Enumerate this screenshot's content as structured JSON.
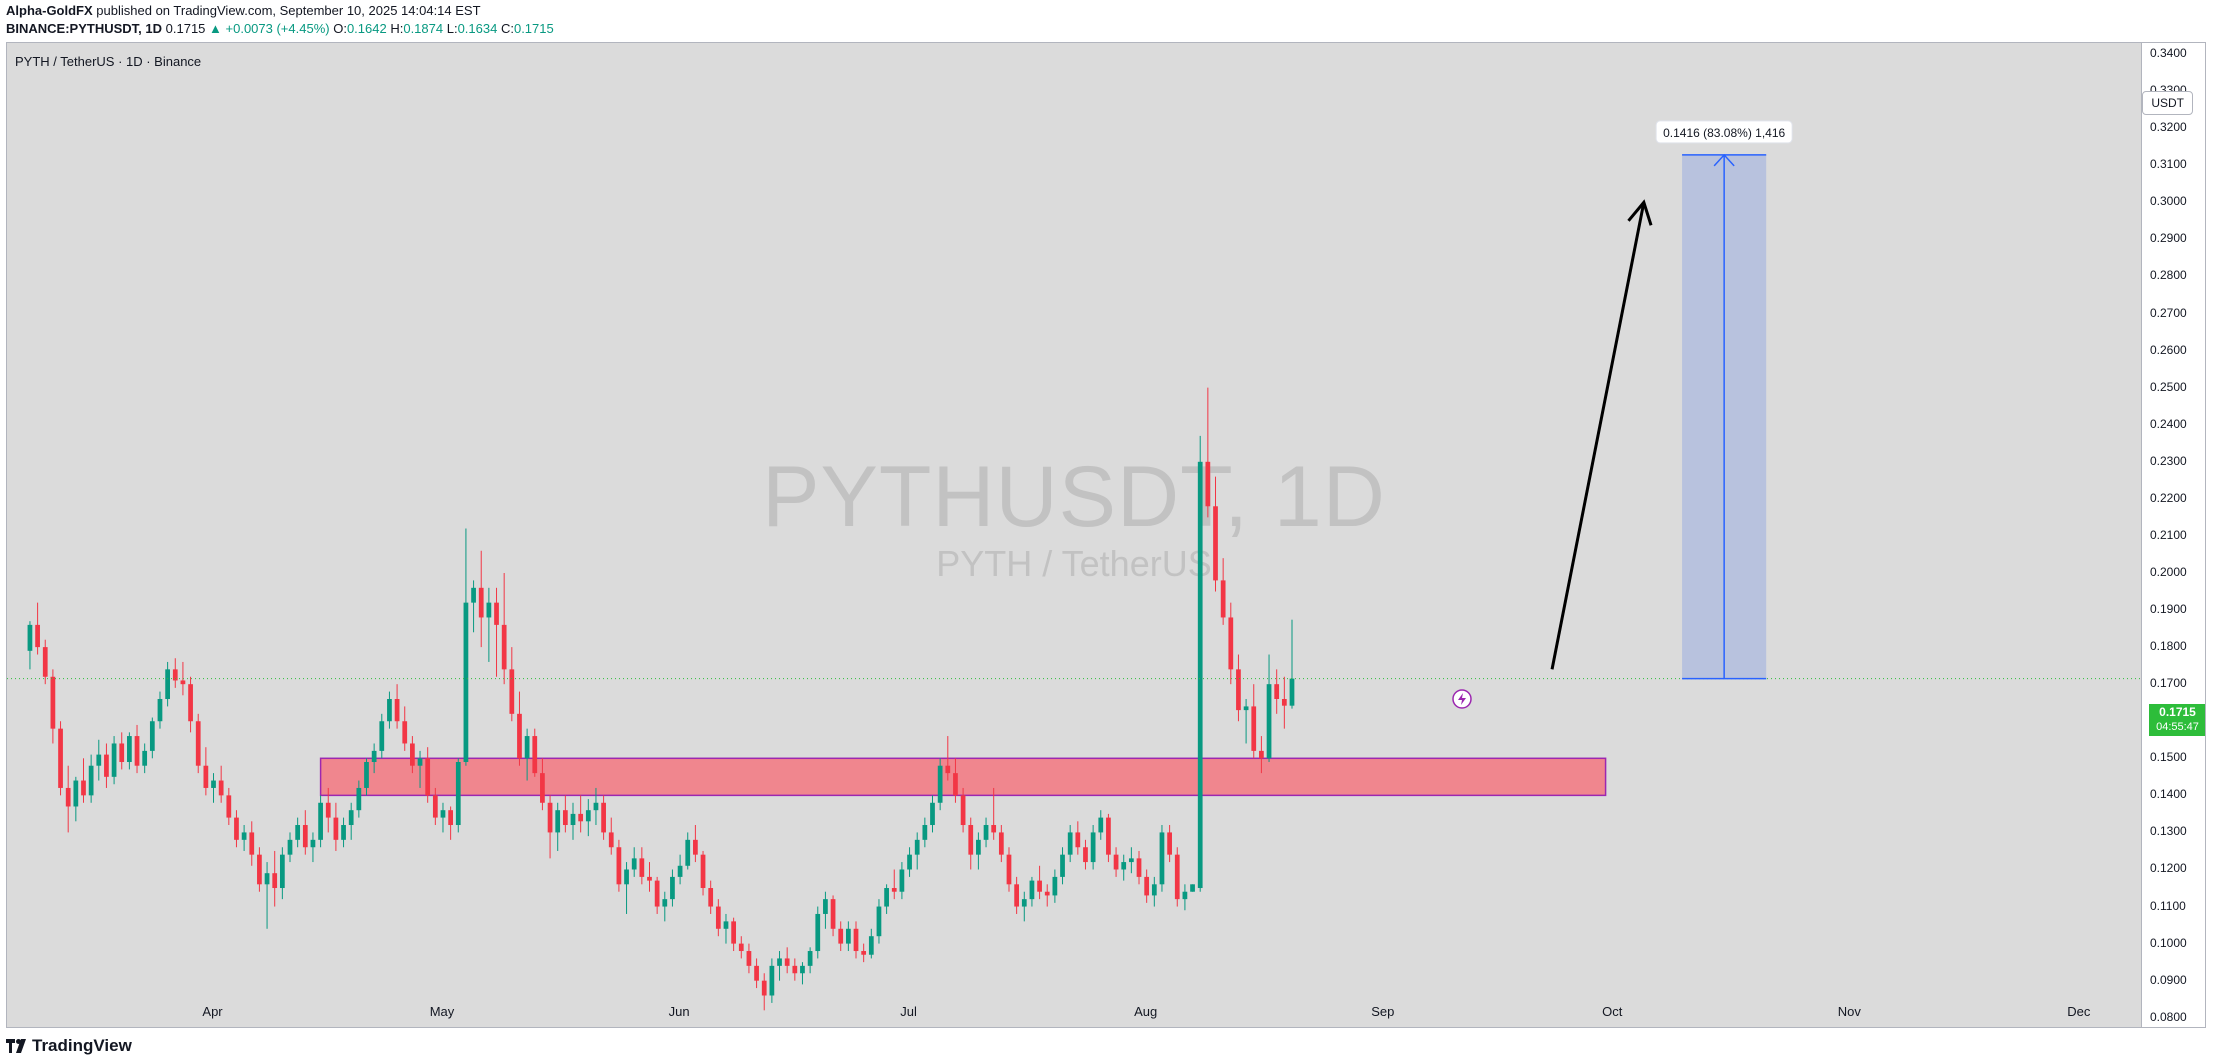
{
  "header": {
    "author": "Alpha-GoldFX",
    "published": "published on TradingView.com, September 10, 2025 14:04:14 EST",
    "symbol": "BINANCE:PYTHUSDT, 1D",
    "last": "0.1715",
    "change": "▲ +0.0073 (+4.45%)",
    "o_label": "O:",
    "o": "0.1642",
    "h_label": "H:",
    "h": "0.1874",
    "l_label": "L:",
    "l": "0.1634",
    "c_label": "C:",
    "c": "0.1715"
  },
  "pane_title": "PYTH / TetherUS · 1D · Binance",
  "watermark": {
    "symbol": "PYTHUSDT, 1D",
    "name": "PYTH / TetherUS"
  },
  "currency_button": "USDT",
  "price_tag": {
    "price": "0.1715",
    "countdown": "04:55:47"
  },
  "measure_label": "0.1416 (83.08%) 1,416",
  "footer": {
    "brand": "TradingView"
  },
  "colors": {
    "up": "#089981",
    "down": "#f23645",
    "zone": "#f0868e",
    "zone_border": "#9c27b0",
    "projection": "#2962ff"
  },
  "icons": [
    "flash-icon",
    "tradingview-logo-icon"
  ],
  "chart_data": {
    "type": "candlestick",
    "title": "PYTHUSDT, 1D",
    "y_ticks": [
      "0.0800",
      "0.0900",
      "0.1000",
      "0.1100",
      "0.1200",
      "0.1300",
      "0.1400",
      "0.1500",
      "0.1600",
      "0.1700",
      "0.1800",
      "0.1900",
      "0.2000",
      "0.2100",
      "0.2200",
      "0.2300",
      "0.2400",
      "0.2500",
      "0.2600",
      "0.2700",
      "0.2800",
      "0.2900",
      "0.3000",
      "0.3100",
      "0.3200",
      "0.3300",
      "0.3400"
    ],
    "ylim": [
      0.0775,
      0.343
    ],
    "x_ticks": [
      {
        "label": "Apr",
        "day": 24
      },
      {
        "label": "May",
        "day": 54
      },
      {
        "label": "Jun",
        "day": 85
      },
      {
        "label": "Jul",
        "day": 115
      },
      {
        "label": "Aug",
        "day": 146
      },
      {
        "label": "Sep",
        "day": 177
      },
      {
        "label": "Oct",
        "day": 207
      },
      {
        "label": "Nov",
        "day": 238
      },
      {
        "label": "Dec",
        "day": 268
      }
    ],
    "x_range_days": [
      -3,
      276
    ],
    "current_price": 0.1715,
    "support_zone": {
      "from": 0.14,
      "to": 0.15,
      "day_start": 38,
      "day_end": 206
    },
    "projection": {
      "from_price": 0.1715,
      "to_price": 0.3128,
      "day_start": 216,
      "day_end": 227
    },
    "arrow": {
      "from": {
        "day": 199,
        "price": 0.174
      },
      "to": {
        "day": 211,
        "price": 0.3
      }
    },
    "ohlc": [
      [
        0.179,
        0.187,
        0.174,
        0.186
      ],
      [
        0.186,
        0.192,
        0.178,
        0.18
      ],
      [
        0.18,
        0.182,
        0.17,
        0.172
      ],
      [
        0.172,
        0.174,
        0.154,
        0.158
      ],
      [
        0.158,
        0.16,
        0.14,
        0.142
      ],
      [
        0.142,
        0.148,
        0.13,
        0.137
      ],
      [
        0.137,
        0.145,
        0.133,
        0.144
      ],
      [
        0.144,
        0.15,
        0.138,
        0.14
      ],
      [
        0.14,
        0.151,
        0.138,
        0.148
      ],
      [
        0.148,
        0.155,
        0.144,
        0.151
      ],
      [
        0.151,
        0.154,
        0.142,
        0.145
      ],
      [
        0.145,
        0.156,
        0.143,
        0.154
      ],
      [
        0.154,
        0.157,
        0.147,
        0.149
      ],
      [
        0.149,
        0.157,
        0.147,
        0.156
      ],
      [
        0.156,
        0.159,
        0.146,
        0.148
      ],
      [
        0.148,
        0.154,
        0.146,
        0.152
      ],
      [
        0.152,
        0.161,
        0.15,
        0.16
      ],
      [
        0.16,
        0.168,
        0.158,
        0.166
      ],
      [
        0.166,
        0.176,
        0.164,
        0.174
      ],
      [
        0.174,
        0.177,
        0.169,
        0.171
      ],
      [
        0.171,
        0.176,
        0.167,
        0.17
      ],
      [
        0.17,
        0.172,
        0.157,
        0.16
      ],
      [
        0.16,
        0.162,
        0.146,
        0.148
      ],
      [
        0.148,
        0.153,
        0.14,
        0.142
      ],
      [
        0.142,
        0.146,
        0.138,
        0.144
      ],
      [
        0.144,
        0.148,
        0.138,
        0.14
      ],
      [
        0.14,
        0.142,
        0.132,
        0.134
      ],
      [
        0.134,
        0.136,
        0.126,
        0.128
      ],
      [
        0.128,
        0.132,
        0.125,
        0.13
      ],
      [
        0.13,
        0.133,
        0.121,
        0.124
      ],
      [
        0.124,
        0.126,
        0.114,
        0.116
      ],
      [
        0.116,
        0.122,
        0.104,
        0.119
      ],
      [
        0.119,
        0.125,
        0.11,
        0.115
      ],
      [
        0.115,
        0.126,
        0.112,
        0.124
      ],
      [
        0.124,
        0.13,
        0.122,
        0.128
      ],
      [
        0.128,
        0.134,
        0.126,
        0.132
      ],
      [
        0.132,
        0.136,
        0.124,
        0.126
      ],
      [
        0.126,
        0.13,
        0.122,
        0.128
      ],
      [
        0.128,
        0.14,
        0.126,
        0.138
      ],
      [
        0.138,
        0.142,
        0.13,
        0.134
      ],
      [
        0.134,
        0.138,
        0.125,
        0.128
      ],
      [
        0.128,
        0.134,
        0.126,
        0.132
      ],
      [
        0.132,
        0.138,
        0.128,
        0.136
      ],
      [
        0.136,
        0.144,
        0.134,
        0.142
      ],
      [
        0.142,
        0.15,
        0.14,
        0.149
      ],
      [
        0.149,
        0.154,
        0.146,
        0.152
      ],
      [
        0.152,
        0.162,
        0.15,
        0.16
      ],
      [
        0.16,
        0.168,
        0.158,
        0.166
      ],
      [
        0.166,
        0.17,
        0.158,
        0.16
      ],
      [
        0.16,
        0.164,
        0.152,
        0.154
      ],
      [
        0.154,
        0.156,
        0.146,
        0.148
      ],
      [
        0.148,
        0.152,
        0.142,
        0.15
      ],
      [
        0.15,
        0.153,
        0.138,
        0.14
      ],
      [
        0.14,
        0.142,
        0.132,
        0.134
      ],
      [
        0.134,
        0.138,
        0.13,
        0.136
      ],
      [
        0.136,
        0.137,
        0.128,
        0.132
      ],
      [
        0.132,
        0.15,
        0.13,
        0.149
      ],
      [
        0.149,
        0.212,
        0.148,
        0.192
      ],
      [
        0.192,
        0.198,
        0.184,
        0.196
      ],
      [
        0.196,
        0.206,
        0.18,
        0.188
      ],
      [
        0.188,
        0.196,
        0.176,
        0.192
      ],
      [
        0.192,
        0.196,
        0.172,
        0.186
      ],
      [
        0.186,
        0.2,
        0.17,
        0.174
      ],
      [
        0.174,
        0.18,
        0.16,
        0.162
      ],
      [
        0.162,
        0.168,
        0.148,
        0.15
      ],
      [
        0.15,
        0.158,
        0.144,
        0.156
      ],
      [
        0.156,
        0.158,
        0.145,
        0.146
      ],
      [
        0.146,
        0.15,
        0.136,
        0.138
      ],
      [
        0.138,
        0.14,
        0.123,
        0.13
      ],
      [
        0.13,
        0.138,
        0.125,
        0.136
      ],
      [
        0.136,
        0.14,
        0.13,
        0.132
      ],
      [
        0.132,
        0.138,
        0.128,
        0.135
      ],
      [
        0.135,
        0.14,
        0.13,
        0.133
      ],
      [
        0.133,
        0.139,
        0.129,
        0.136
      ],
      [
        0.136,
        0.142,
        0.132,
        0.138
      ],
      [
        0.138,
        0.14,
        0.128,
        0.13
      ],
      [
        0.13,
        0.134,
        0.124,
        0.126
      ],
      [
        0.126,
        0.128,
        0.114,
        0.116
      ],
      [
        0.116,
        0.122,
        0.108,
        0.12
      ],
      [
        0.12,
        0.126,
        0.118,
        0.123
      ],
      [
        0.123,
        0.126,
        0.116,
        0.118
      ],
      [
        0.118,
        0.122,
        0.114,
        0.117
      ],
      [
        0.117,
        0.118,
        0.108,
        0.11
      ],
      [
        0.11,
        0.114,
        0.106,
        0.112
      ],
      [
        0.112,
        0.12,
        0.11,
        0.118
      ],
      [
        0.118,
        0.124,
        0.116,
        0.121
      ],
      [
        0.121,
        0.13,
        0.12,
        0.128
      ],
      [
        0.128,
        0.132,
        0.122,
        0.124
      ],
      [
        0.124,
        0.125,
        0.113,
        0.115
      ],
      [
        0.115,
        0.117,
        0.108,
        0.11
      ],
      [
        0.11,
        0.112,
        0.102,
        0.104
      ],
      [
        0.104,
        0.108,
        0.1,
        0.106
      ],
      [
        0.106,
        0.107,
        0.098,
        0.1
      ],
      [
        0.1,
        0.102,
        0.096,
        0.098
      ],
      [
        0.098,
        0.1,
        0.092,
        0.094
      ],
      [
        0.094,
        0.096,
        0.088,
        0.09
      ],
      [
        0.09,
        0.092,
        0.082,
        0.086
      ],
      [
        0.086,
        0.096,
        0.084,
        0.094
      ],
      [
        0.094,
        0.098,
        0.09,
        0.096
      ],
      [
        0.096,
        0.099,
        0.092,
        0.094
      ],
      [
        0.094,
        0.096,
        0.09,
        0.092
      ],
      [
        0.092,
        0.095,
        0.089,
        0.094
      ],
      [
        0.094,
        0.099,
        0.092,
        0.098
      ],
      [
        0.098,
        0.11,
        0.096,
        0.108
      ],
      [
        0.108,
        0.114,
        0.104,
        0.112
      ],
      [
        0.112,
        0.113,
        0.102,
        0.104
      ],
      [
        0.104,
        0.106,
        0.098,
        0.1
      ],
      [
        0.1,
        0.106,
        0.098,
        0.104
      ],
      [
        0.104,
        0.106,
        0.096,
        0.098
      ],
      [
        0.098,
        0.1,
        0.095,
        0.097
      ],
      [
        0.097,
        0.104,
        0.096,
        0.102
      ],
      [
        0.102,
        0.112,
        0.1,
        0.11
      ],
      [
        0.11,
        0.116,
        0.108,
        0.115
      ],
      [
        0.115,
        0.12,
        0.112,
        0.114
      ],
      [
        0.114,
        0.122,
        0.112,
        0.12
      ],
      [
        0.12,
        0.126,
        0.118,
        0.124
      ],
      [
        0.124,
        0.13,
        0.12,
        0.128
      ],
      [
        0.128,
        0.134,
        0.126,
        0.132
      ],
      [
        0.132,
        0.14,
        0.13,
        0.138
      ],
      [
        0.138,
        0.15,
        0.136,
        0.148
      ],
      [
        0.148,
        0.156,
        0.144,
        0.146
      ],
      [
        0.146,
        0.15,
        0.138,
        0.14
      ],
      [
        0.14,
        0.142,
        0.13,
        0.132
      ],
      [
        0.132,
        0.134,
        0.12,
        0.124
      ],
      [
        0.124,
        0.13,
        0.12,
        0.128
      ],
      [
        0.128,
        0.134,
        0.126,
        0.132
      ],
      [
        0.132,
        0.142,
        0.128,
        0.13
      ],
      [
        0.13,
        0.132,
        0.122,
        0.124
      ],
      [
        0.124,
        0.126,
        0.114,
        0.116
      ],
      [
        0.116,
        0.118,
        0.108,
        0.11
      ],
      [
        0.11,
        0.114,
        0.106,
        0.112
      ],
      [
        0.112,
        0.118,
        0.11,
        0.117
      ],
      [
        0.117,
        0.121,
        0.112,
        0.114
      ],
      [
        0.114,
        0.116,
        0.11,
        0.113
      ],
      [
        0.113,
        0.12,
        0.111,
        0.118
      ],
      [
        0.118,
        0.126,
        0.116,
        0.124
      ],
      [
        0.124,
        0.132,
        0.122,
        0.13
      ],
      [
        0.13,
        0.133,
        0.124,
        0.126
      ],
      [
        0.126,
        0.128,
        0.12,
        0.122
      ],
      [
        0.122,
        0.132,
        0.12,
        0.13
      ],
      [
        0.13,
        0.136,
        0.128,
        0.134
      ],
      [
        0.134,
        0.135,
        0.122,
        0.124
      ],
      [
        0.124,
        0.126,
        0.118,
        0.12
      ],
      [
        0.12,
        0.124,
        0.117,
        0.122
      ],
      [
        0.122,
        0.126,
        0.119,
        0.123
      ],
      [
        0.123,
        0.125,
        0.116,
        0.118
      ],
      [
        0.118,
        0.12,
        0.111,
        0.113
      ],
      [
        0.113,
        0.118,
        0.11,
        0.116
      ],
      [
        0.116,
        0.132,
        0.114,
        0.13
      ],
      [
        0.13,
        0.132,
        0.122,
        0.124
      ],
      [
        0.124,
        0.126,
        0.11,
        0.112
      ],
      [
        0.112,
        0.116,
        0.109,
        0.114
      ],
      [
        0.114,
        0.116,
        0.114,
        0.116
      ],
      [
        0.115,
        0.237,
        0.114,
        0.23
      ],
      [
        0.23,
        0.25,
        0.215,
        0.218
      ],
      [
        0.218,
        0.226,
        0.195,
        0.198
      ],
      [
        0.198,
        0.204,
        0.186,
        0.188
      ],
      [
        0.188,
        0.192,
        0.17,
        0.174
      ],
      [
        0.174,
        0.178,
        0.16,
        0.163
      ],
      [
        0.163,
        0.166,
        0.154,
        0.164
      ],
      [
        0.164,
        0.17,
        0.15,
        0.152
      ],
      [
        0.152,
        0.156,
        0.146,
        0.15
      ],
      [
        0.15,
        0.178,
        0.149,
        0.17
      ],
      [
        0.17,
        0.174,
        0.162,
        0.166
      ],
      [
        0.166,
        0.172,
        0.158,
        0.1642
      ],
      [
        0.1642,
        0.1874,
        0.1634,
        0.1715
      ]
    ]
  }
}
